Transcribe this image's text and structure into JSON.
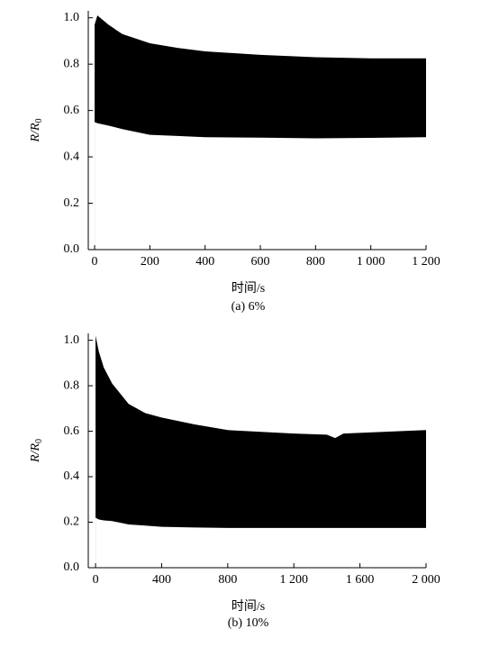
{
  "chart_data": [
    {
      "type": "band",
      "caption": "(a) 6%",
      "xlabel": "时间/s",
      "ylabel": "R/R",
      "ylabel_sub": "0",
      "color": "#000000",
      "x": [
        0,
        10,
        50,
        100,
        200,
        300,
        400,
        600,
        800,
        1000,
        1200
      ],
      "upper": [
        0.97,
        1.01,
        0.97,
        0.93,
        0.89,
        0.87,
        0.855,
        0.84,
        0.83,
        0.825,
        0.825
      ],
      "lower": [
        0.55,
        0.545,
        0.535,
        0.52,
        0.495,
        0.49,
        0.485,
        0.483,
        0.48,
        0.482,
        0.485
      ],
      "xlim": [
        -23,
        1200
      ],
      "ylim": [
        0,
        1.03
      ],
      "xticks": [
        0,
        200,
        400,
        600,
        800,
        {
          "value": 1000,
          "label": "1 000"
        },
        {
          "value": 1200,
          "label": "1 200"
        }
      ],
      "yticks": [
        {
          "value": 0,
          "label": "0.0"
        },
        0.2,
        0.4,
        0.6,
        0.8,
        {
          "value": 1,
          "label": "1.0"
        }
      ]
    },
    {
      "type": "band",
      "caption": "(b) 10%",
      "xlabel": "时间/s",
      "ylabel": "R/R",
      "ylabel_sub": "0",
      "color": "#000000",
      "x": [
        0,
        20,
        50,
        100,
        200,
        300,
        400,
        600,
        800,
        1200,
        1400,
        1450,
        1500,
        2000
      ],
      "upper": [
        1.02,
        0.95,
        0.88,
        0.81,
        0.72,
        0.68,
        0.66,
        0.63,
        0.605,
        0.59,
        0.585,
        0.57,
        0.59,
        0.605
      ],
      "lower": [
        0.22,
        0.212,
        0.208,
        0.205,
        0.19,
        0.185,
        0.18,
        0.177,
        0.175,
        0.175,
        0.175,
        0.175,
        0.175,
        0.175
      ],
      "xlim": [
        -44,
        2000
      ],
      "ylim": [
        0,
        1.03
      ],
      "xticks": [
        0,
        400,
        800,
        {
          "value": 1200,
          "label": "1 200"
        },
        {
          "value": 1600,
          "label": "1 600"
        },
        {
          "value": 2000,
          "label": "2 000"
        }
      ],
      "yticks": [
        {
          "value": 0,
          "label": "0.0"
        },
        0.2,
        0.4,
        0.6,
        0.8,
        {
          "value": 1,
          "label": "1.0"
        }
      ]
    }
  ]
}
